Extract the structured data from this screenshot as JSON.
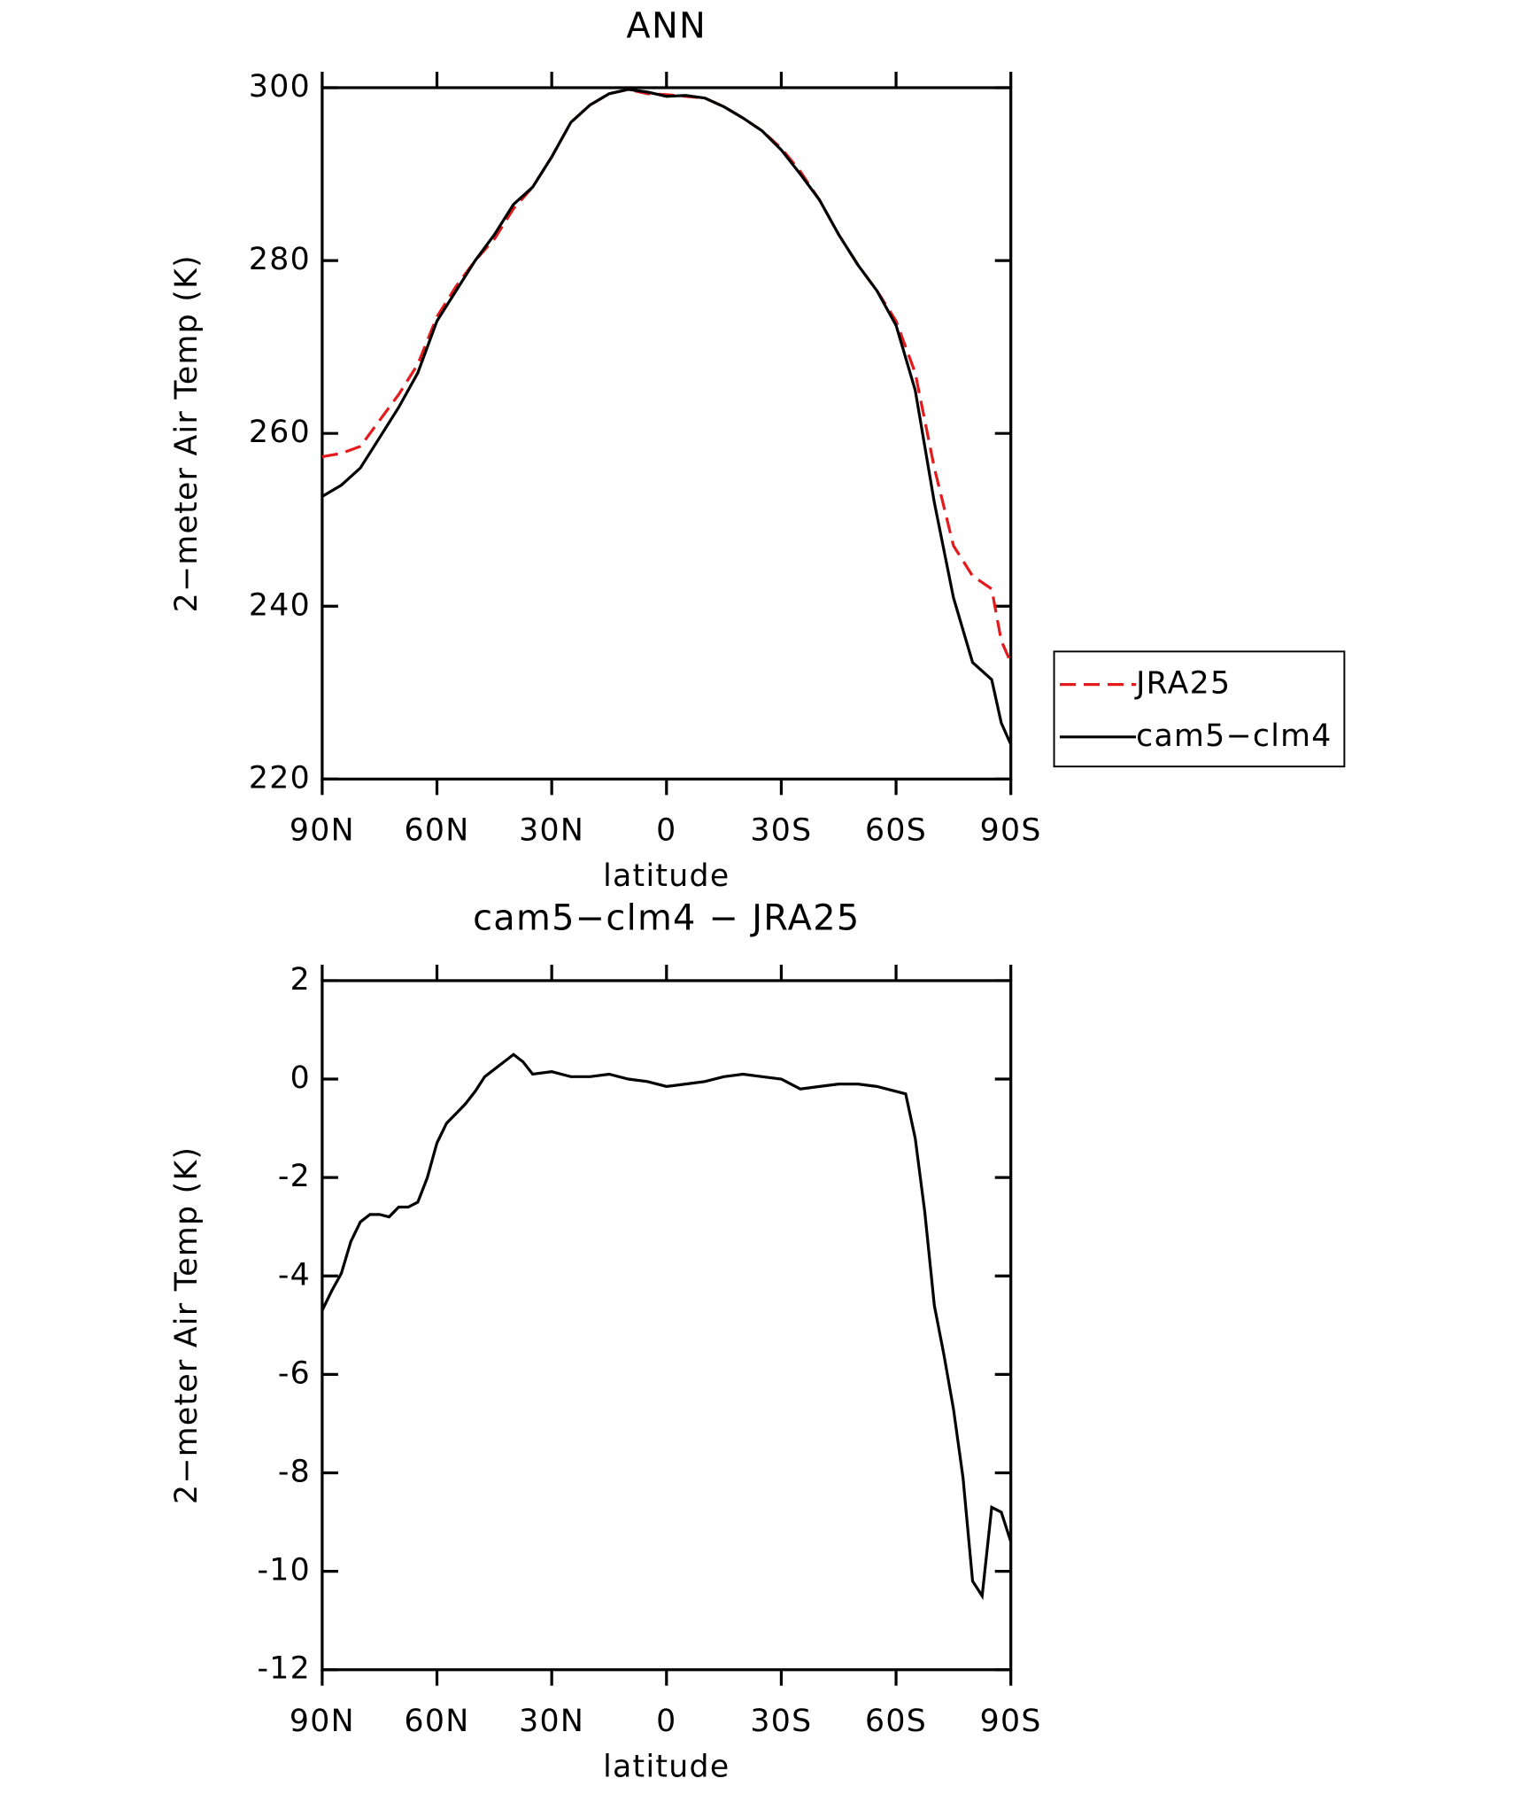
{
  "chart_data": [
    {
      "type": "line",
      "title": "ANN",
      "xlabel": "latitude",
      "ylabel": "2−meter Air Temp (K)",
      "x": [
        90,
        85,
        80,
        75,
        70,
        65,
        60,
        55,
        50,
        45,
        40,
        35,
        30,
        25,
        20,
        15,
        10,
        5,
        0,
        -5,
        -10,
        -15,
        -20,
        -25,
        -30,
        -35,
        -40,
        -45,
        -50,
        -55,
        -60,
        -65,
        -70,
        -75,
        -80,
        -85,
        -87.5,
        -90
      ],
      "series": [
        {
          "name": "JRA25",
          "color": "#e41a1c",
          "dash": true,
          "values": [
            257.3,
            257.7,
            258.5,
            261.5,
            264.5,
            268,
            273.5,
            277,
            280,
            282.5,
            286,
            288.5,
            292,
            296,
            298,
            299.3,
            299.8,
            299.3,
            299.2,
            299,
            298.8,
            297.8,
            296.5,
            295,
            293,
            290.3,
            287,
            283,
            279.5,
            276.5,
            273,
            267,
            256,
            247,
            243.5,
            242,
            236,
            233.5
          ]
        },
        {
          "name": "cam5−clm4",
          "color": "#000000",
          "dash": false,
          "values": [
            252.7,
            254,
            256,
            259.5,
            263,
            267,
            273,
            276.5,
            280,
            283,
            286.5,
            288.5,
            292,
            296,
            298,
            299.3,
            299.8,
            299.5,
            299,
            299.1,
            298.8,
            297.8,
            296.5,
            295,
            292.8,
            290,
            287,
            283,
            279.5,
            276.5,
            272.5,
            265,
            252,
            241,
            233.5,
            231.5,
            226.5,
            224
          ]
        }
      ],
      "xlim": [
        90,
        -90
      ],
      "xticks": [
        {
          "value": 90,
          "label": "90N"
        },
        {
          "value": 60,
          "label": "60N"
        },
        {
          "value": 30,
          "label": "30N"
        },
        0,
        {
          "value": -30,
          "label": "30S"
        },
        {
          "value": -60,
          "label": "60S"
        },
        {
          "value": -90,
          "label": "90S"
        }
      ],
      "ylim": [
        220,
        300
      ],
      "yticks": [
        220,
        240,
        260,
        280,
        300
      ],
      "legend": "right"
    },
    {
      "type": "line",
      "title": "cam5−clm4 − JRA25",
      "xlabel": "latitude",
      "ylabel": "2−meter Air Temp (K)",
      "x": [
        90,
        87.5,
        85,
        82.5,
        80,
        77.5,
        75,
        72.5,
        70,
        67.5,
        65,
        62.5,
        60,
        57.5,
        55,
        52.5,
        50,
        47.5,
        45,
        42.5,
        40,
        37.5,
        35,
        30,
        25,
        20,
        15,
        10,
        5,
        0,
        -5,
        -10,
        -15,
        -20,
        -25,
        -30,
        -35,
        -40,
        -45,
        -50,
        -55,
        -60,
        -62.5,
        -65,
        -67.5,
        -70,
        -72.5,
        -75,
        -77.5,
        -80,
        -82.5,
        -85,
        -87.5,
        -90
      ],
      "series": [
        {
          "name": "cam5−clm4",
          "color": "#000000",
          "dash": false,
          "values": [
            -4.7,
            -4.3,
            -3.95,
            -3.3,
            -2.9,
            -2.75,
            -2.75,
            -2.8,
            -2.6,
            -2.6,
            -2.5,
            -2.0,
            -1.3,
            -0.9,
            -0.7,
            -0.5,
            -0.25,
            0.05,
            0.2,
            0.35,
            0.5,
            0.35,
            0.1,
            0.15,
            0.05,
            0.05,
            0.1,
            0.0,
            -0.05,
            -0.15,
            -0.1,
            -0.05,
            0.05,
            0.1,
            0.05,
            0.0,
            -0.2,
            -0.15,
            -0.1,
            -0.1,
            -0.15,
            -0.25,
            -0.3,
            -1.2,
            -2.7,
            -4.6,
            -5.6,
            -6.7,
            -8.1,
            -10.2,
            -10.5,
            -8.7,
            -8.8,
            -9.4
          ]
        }
      ],
      "xlim": [
        90,
        -90
      ],
      "xticks": [
        {
          "value": 90,
          "label": "90N"
        },
        {
          "value": 60,
          "label": "60N"
        },
        {
          "value": 30,
          "label": "30N"
        },
        0,
        {
          "value": -30,
          "label": "30S"
        },
        {
          "value": -60,
          "label": "60S"
        },
        {
          "value": -90,
          "label": "90S"
        }
      ],
      "ylim": [
        -12,
        2
      ],
      "yticks": [
        -12,
        -10,
        -8,
        -6,
        -4,
        -2,
        0,
        2
      ]
    }
  ]
}
